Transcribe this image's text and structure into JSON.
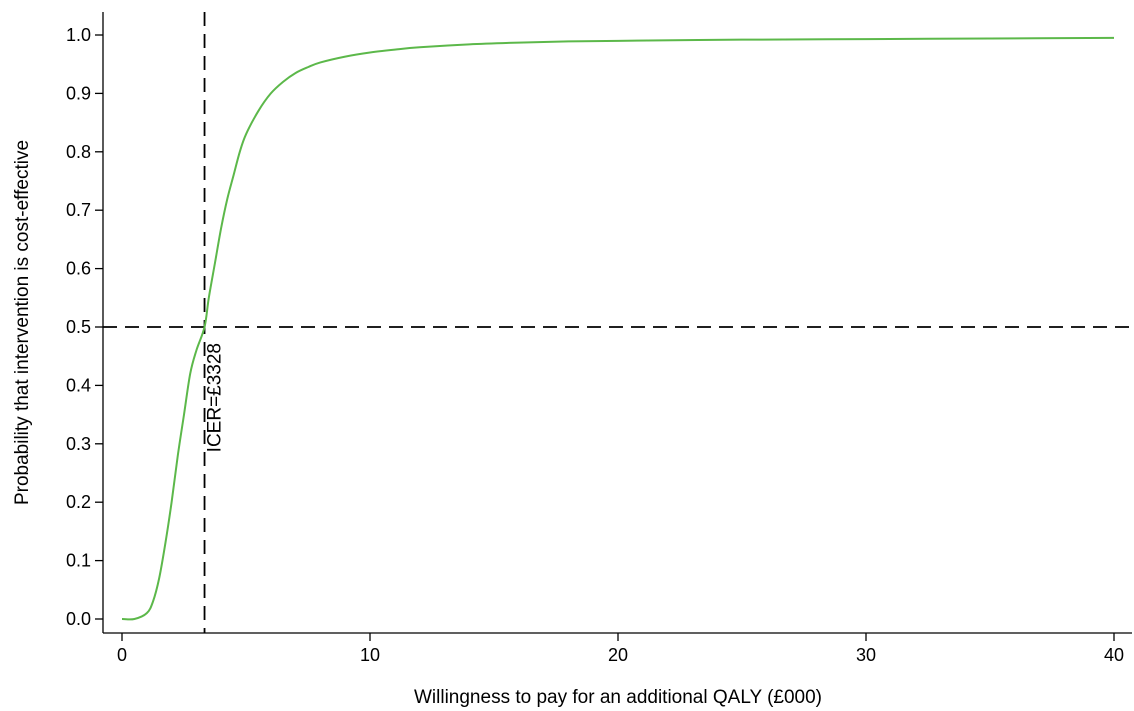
{
  "chart_data": {
    "type": "line",
    "title": "",
    "xlabel": "Willingness to pay for an additional QALY (£000)",
    "ylabel": "Probability that intervention is cost-effective",
    "xlim": [
      0,
      40
    ],
    "ylim": [
      0,
      1
    ],
    "x_ticks": [
      0,
      10,
      20,
      30,
      40
    ],
    "x_tick_labels": [
      "0",
      "10",
      "20",
      "30",
      "40"
    ],
    "y_ticks": [
      0.0,
      0.1,
      0.2,
      0.3,
      0.4,
      0.5,
      0.6,
      0.7,
      0.8,
      0.9,
      1.0
    ],
    "y_tick_labels": [
      "0.0",
      "0.1",
      "0.2",
      "0.3",
      "0.4",
      "0.5",
      "0.6",
      "0.7",
      "0.8",
      "0.9",
      "1.0"
    ],
    "grid": false,
    "series": [
      {
        "color": "#5cb84a",
        "x": [
          0,
          0.5,
          1,
          1.25,
          1.5,
          1.75,
          2,
          2.25,
          2.5,
          2.75,
          3,
          3.328,
          3.5,
          3.75,
          4,
          4.25,
          4.5,
          4.75,
          5,
          5.5,
          6,
          6.5,
          7,
          7.5,
          8,
          9,
          10,
          11,
          12,
          14,
          16,
          18,
          20,
          25,
          30,
          35,
          40
        ],
        "y": [
          0.0,
          0.0,
          0.01,
          0.03,
          0.07,
          0.13,
          0.2,
          0.28,
          0.35,
          0.42,
          0.46,
          0.5,
          0.55,
          0.61,
          0.67,
          0.72,
          0.76,
          0.8,
          0.83,
          0.87,
          0.9,
          0.92,
          0.935,
          0.945,
          0.953,
          0.963,
          0.97,
          0.975,
          0.979,
          0.984,
          0.987,
          0.989,
          0.99,
          0.992,
          0.993,
          0.994,
          0.995
        ]
      }
    ],
    "reference_lines": [
      {
        "orientation": "horizontal",
        "value": 0.5,
        "style": "dashed",
        "color": "#000000"
      },
      {
        "orientation": "vertical",
        "value": 3.328,
        "style": "dashed",
        "color": "#000000",
        "label": "ICER=£3328"
      }
    ]
  }
}
